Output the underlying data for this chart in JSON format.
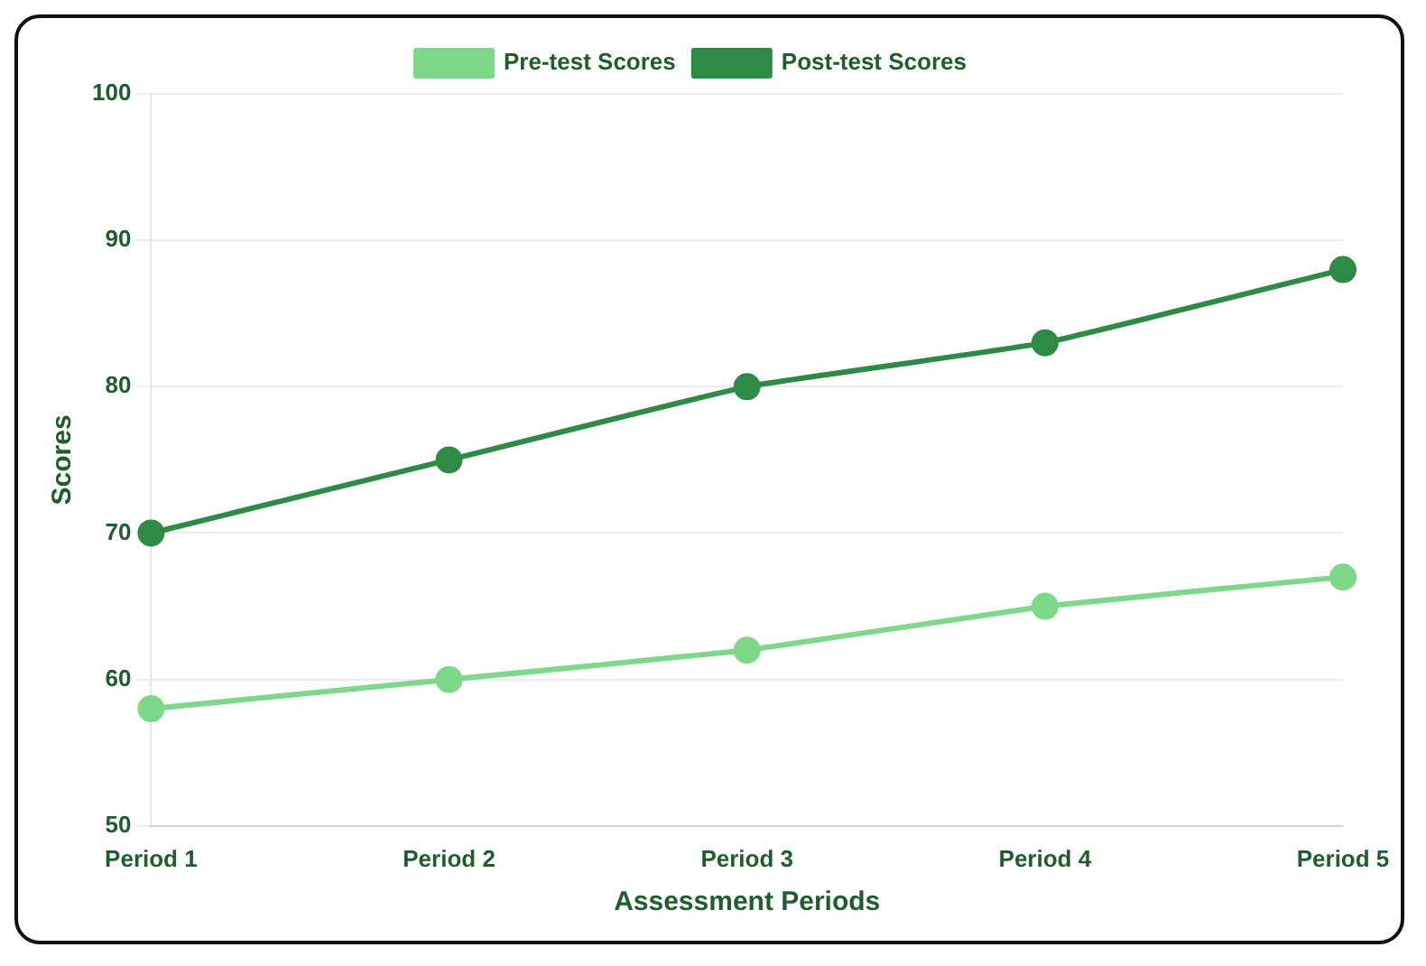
{
  "chart_data": {
    "type": "line",
    "xlabel": "Assessment Periods",
    "ylabel": "Scores",
    "categories": [
      "Period 1",
      "Period 2",
      "Period 3",
      "Period 4",
      "Period 5"
    ],
    "series": [
      {
        "name": "Pre-test Scores",
        "color": "#7dd88a",
        "values": [
          58,
          60,
          62,
          65,
          67
        ]
      },
      {
        "name": "Post-test Scores",
        "color": "#2e8b45",
        "values": [
          70,
          75,
          80,
          83,
          88
        ]
      }
    ],
    "ylim": [
      50,
      100
    ],
    "yticks": [
      50,
      60,
      70,
      80,
      90,
      100
    ],
    "grid": "y",
    "legend": "top",
    "marker": "circle",
    "line_style": "solid"
  }
}
